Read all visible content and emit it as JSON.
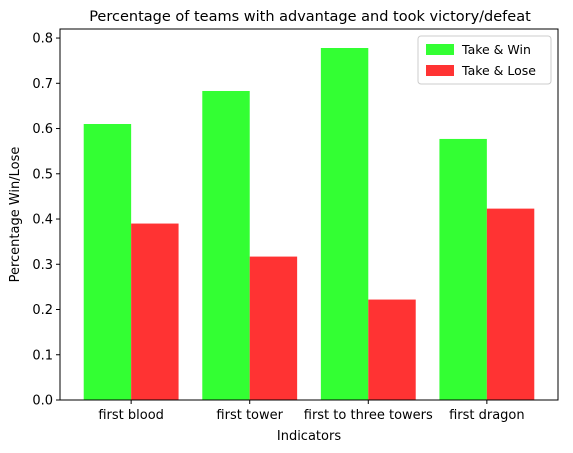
{
  "chart_data": {
    "type": "bar",
    "title": "Percentage of teams with advantage and took victory/defeat",
    "xlabel": "Indicators",
    "ylabel": "Percentage Win/Lose",
    "categories": [
      "first blood",
      "first tower",
      "first to three towers",
      "first dragon"
    ],
    "series": [
      {
        "name": "Take & Win",
        "color": "#33ff33",
        "values": [
          0.61,
          0.683,
          0.778,
          0.577
        ]
      },
      {
        "name": "Take & Lose",
        "color": "#ff3333",
        "values": [
          0.39,
          0.317,
          0.222,
          0.423
        ]
      }
    ],
    "ylim": [
      0,
      0.82
    ],
    "yticks": [
      "0.0",
      "0.1",
      "0.2",
      "0.3",
      "0.4",
      "0.5",
      "0.6",
      "0.7",
      "0.8"
    ],
    "grid": false,
    "legend_position": "top-right"
  }
}
